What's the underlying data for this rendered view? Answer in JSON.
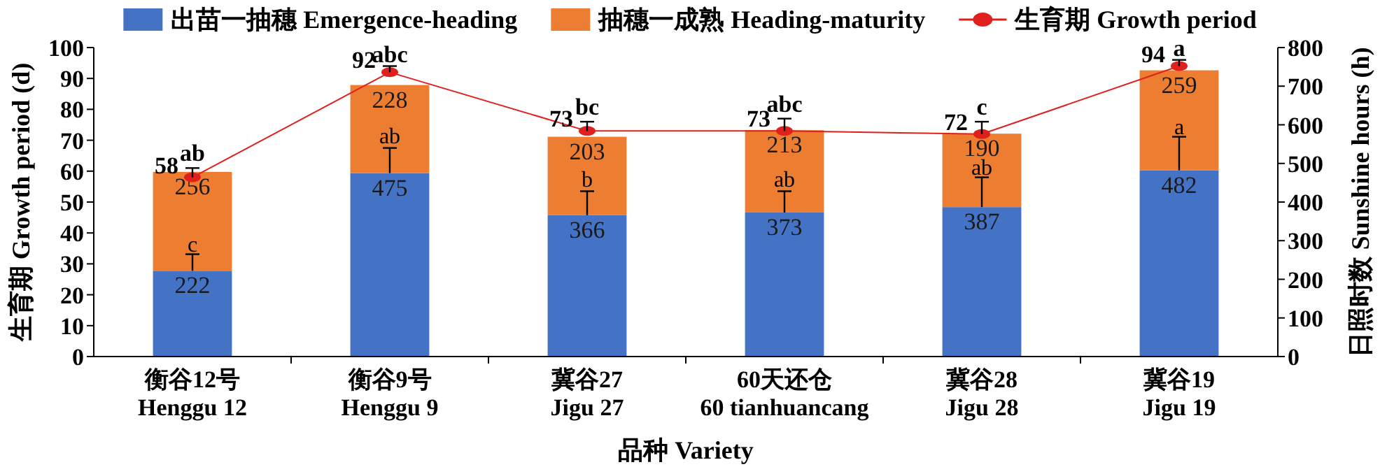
{
  "chart_data": {
    "type": "bar",
    "stacked": true,
    "legend": "top",
    "data_labels": true,
    "marker": "circle",
    "line_style": "solid",
    "xlabel": "品种 Variety",
    "ylabel": "生育期 Growth period (d)",
    "y2label": "日照时数 Sunshine hours (h)",
    "categories": [
      "衡谷12号\nHenggu 12",
      "衡谷9号\nHenggu 9",
      "冀谷27\nJigu 27",
      "60天还仓\n60 tianhuancang",
      "冀谷28\nJigu 28",
      "冀谷19\nJigu 19"
    ],
    "ylim": [
      0,
      100
    ],
    "yticks": [
      0,
      10,
      20,
      30,
      40,
      50,
      60,
      70,
      80,
      90,
      100
    ],
    "y2lim": [
      0,
      800
    ],
    "y2ticks": [
      0,
      100,
      200,
      300,
      400,
      500,
      600,
      700,
      800
    ],
    "series": [
      {
        "name": "出苗一抽穗 Emergence-heading",
        "axis": "y2",
        "color": "#4472c4",
        "values": [
          222,
          475,
          366,
          373,
          387,
          482
        ],
        "errors": [
          [
            222,
            265
          ],
          [
            475,
            540
          ],
          [
            366,
            428
          ],
          [
            373,
            428
          ],
          [
            387,
            464
          ],
          [
            482,
            569
          ]
        ]
      },
      {
        "name": "抽穗一成熟 Heading-maturity",
        "axis": "y2",
        "color": "#ed7d31",
        "values": [
          256,
          228,
          203,
          213,
          190,
          259
        ]
      },
      {
        "name": "生育期 Growth period",
        "type": "line",
        "axis": "y",
        "color": "#e0201c",
        "values": [
          58,
          92,
          73,
          73,
          72,
          94
        ],
        "errors": [
          [
            58,
            61
          ],
          [
            92,
            94
          ],
          [
            73,
            76
          ],
          [
            73,
            77
          ],
          [
            72,
            76
          ],
          [
            94,
            96
          ]
        ]
      }
    ],
    "annotations": [
      {
        "text": "c",
        "x": "衡谷12号\nHenggu 12",
        "y": 33
      },
      {
        "text": "ab",
        "x": "衡谷9号\nHenggu 9",
        "y": 68
      },
      {
        "text": "b",
        "x": "冀谷27\nJigu 27",
        "y": 54
      },
      {
        "text": "ab",
        "x": "60天还仓\n60 tianhuancang",
        "y": 54
      },
      {
        "text": "ab",
        "x": "冀谷28\nJigu 28",
        "y": 58
      },
      {
        "text": "a",
        "x": "冀谷19\nJigu 19",
        "y": 71
      },
      {
        "text": "ab",
        "x": "衡谷12号\nHenggu 12",
        "y": 61
      },
      {
        "text": "abc",
        "x": "衡谷9号\nHenggu 9",
        "y": 93
      },
      {
        "text": "bc",
        "x": "冀谷27\nJigu 27",
        "y": 76
      },
      {
        "text": "abc",
        "x": "60天还仓\n60 tianhuancang",
        "y": 77
      },
      {
        "text": "c",
        "x": "冀谷28\nJigu 28",
        "y": 76
      },
      {
        "text": "a",
        "x": "冀谷19\nJigu 19",
        "y": 95
      }
    ]
  }
}
